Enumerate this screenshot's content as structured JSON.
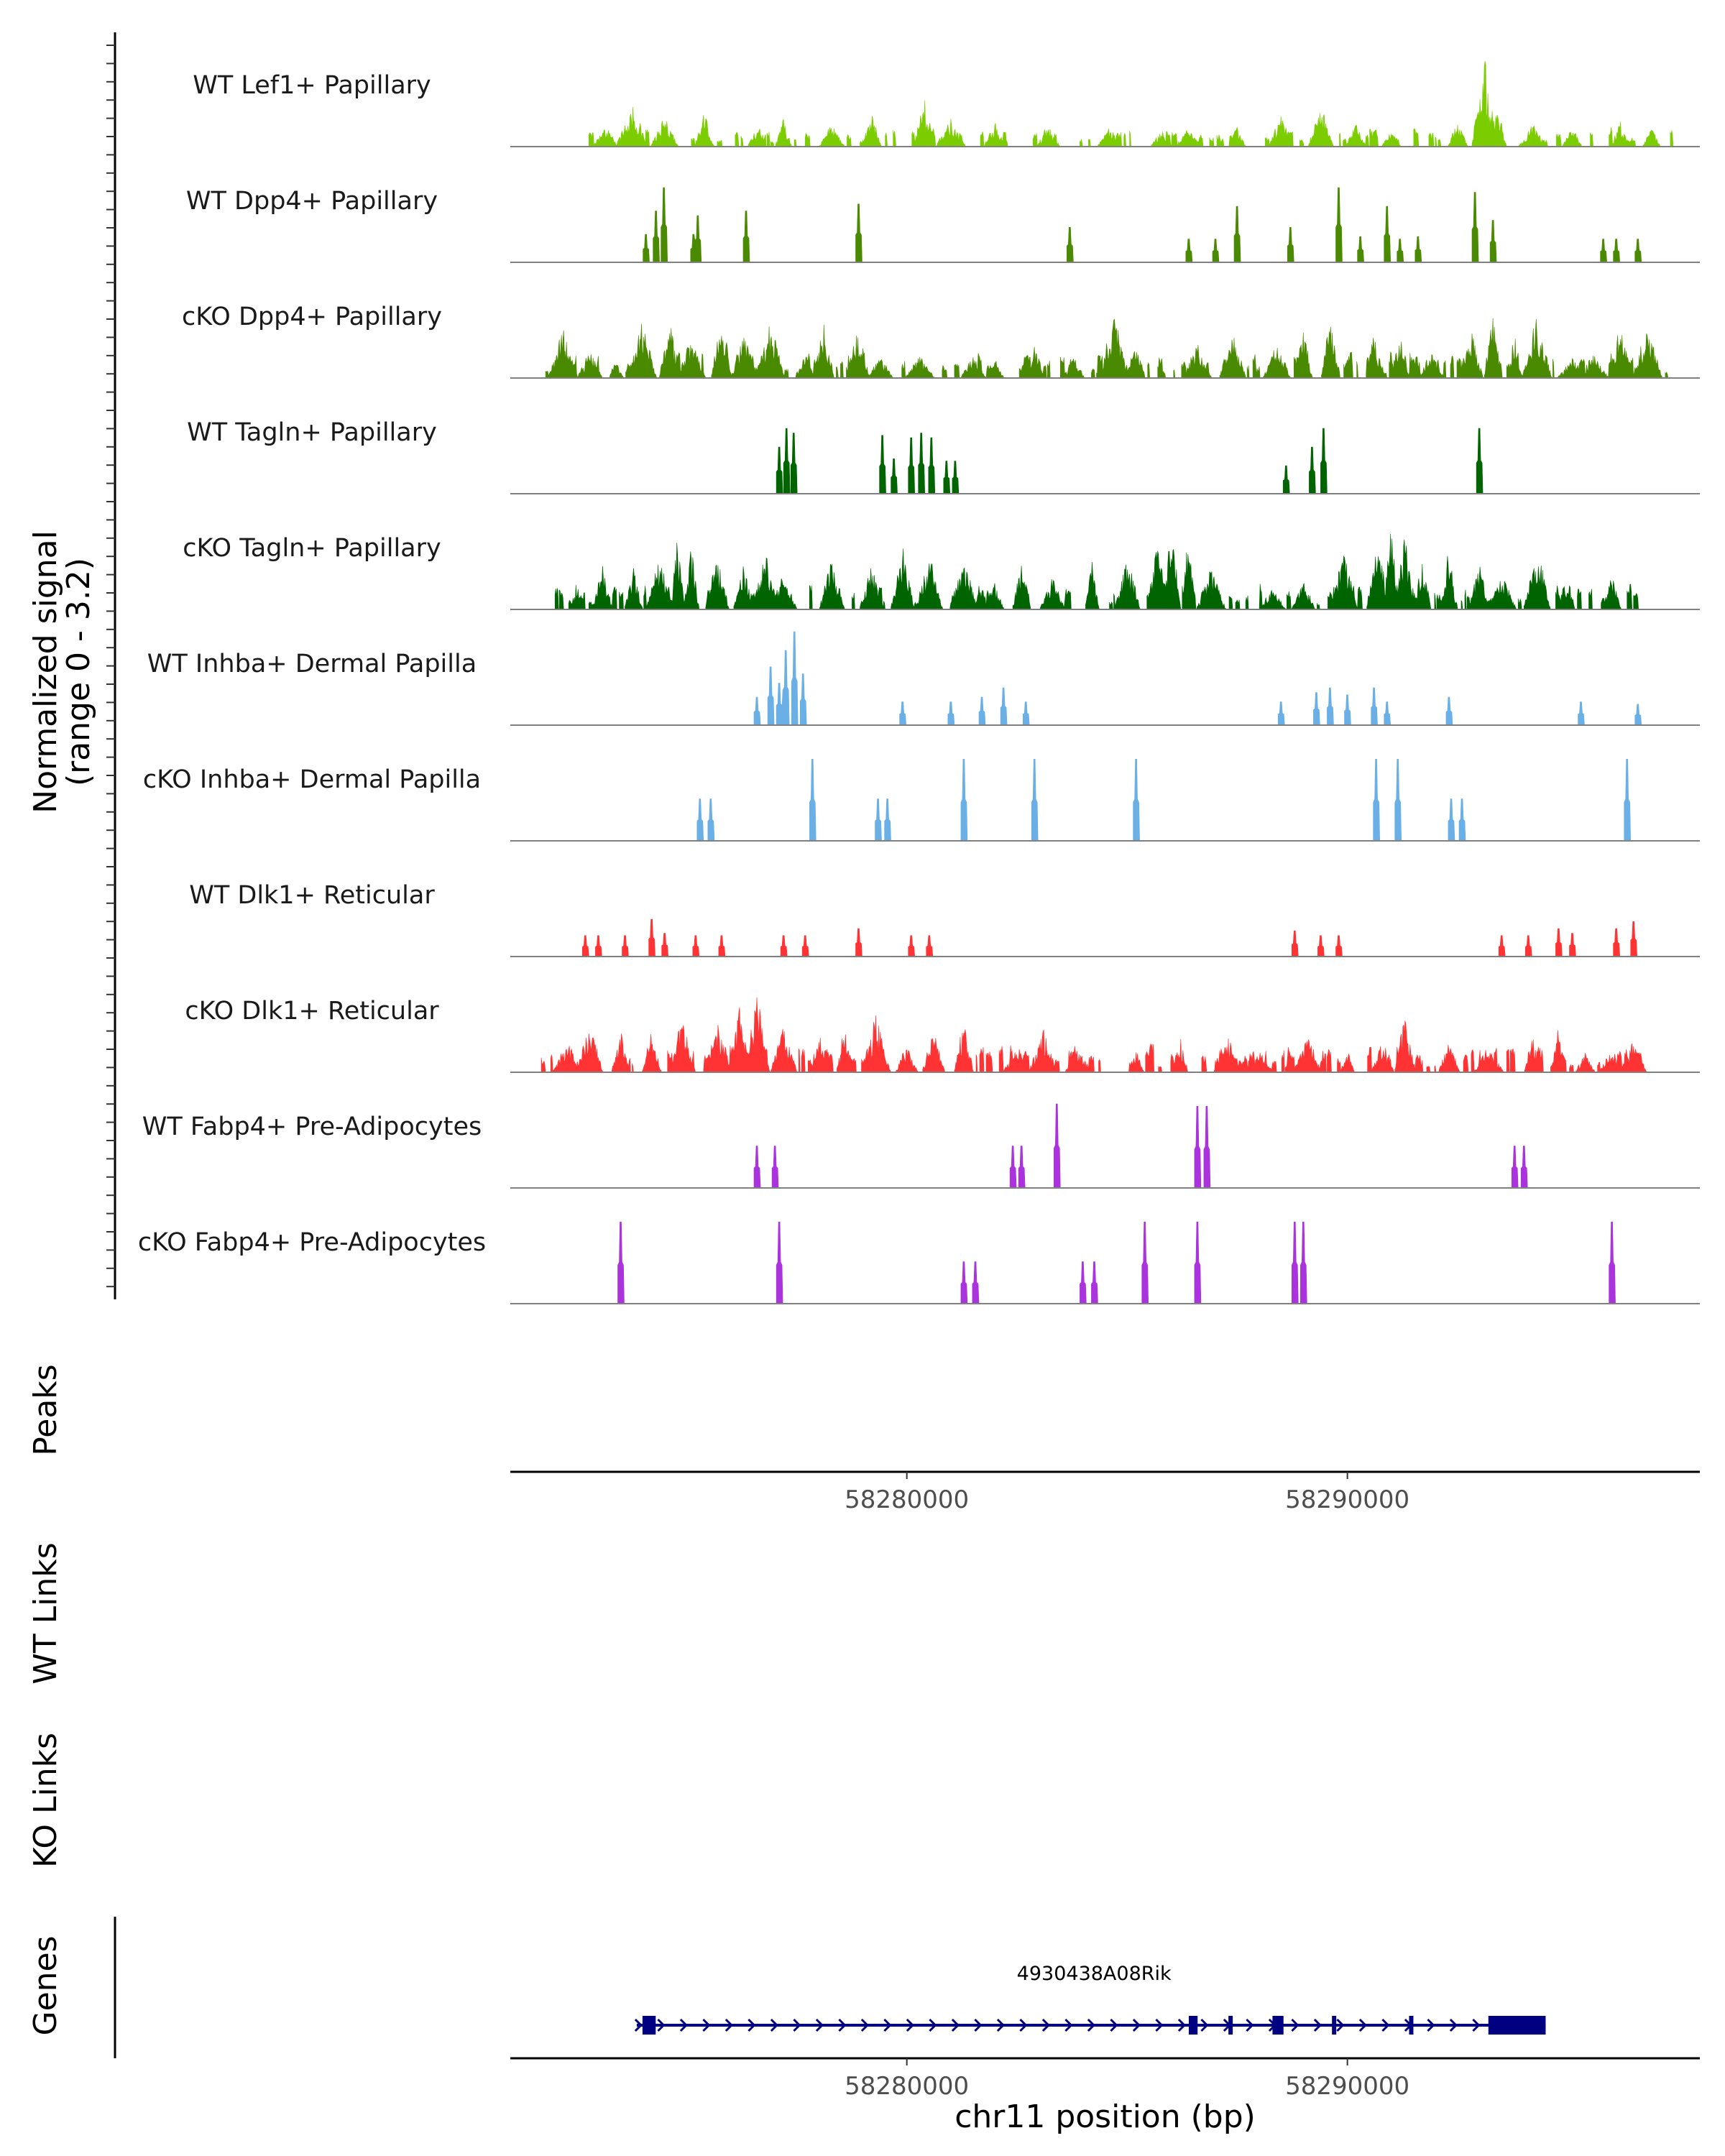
{
  "chart_data": {
    "type": "coverage",
    "chromosome": "chr11",
    "xlabel": "chr11 position (bp)",
    "xlim": [
      58271000,
      58298000
    ],
    "x_ticks": [
      58280000,
      58290000
    ],
    "x_tick_labels": [
      "58280000",
      "58290000"
    ],
    "signal_axis_label": [
      "Normalized signal",
      "(range 0 - 3.2)"
    ],
    "signal_range": [
      0,
      3.2
    ],
    "tracks": [
      {
        "name": "WT Lef1+ Papillary",
        "color": "#7CCD00",
        "density": 0.55,
        "peaks": [
          [
            58273150,
            0.8
          ],
          [
            58273600,
            1.0
          ],
          [
            58273800,
            1.9
          ],
          [
            58274500,
            1.3
          ],
          [
            58275400,
            1.5
          ],
          [
            58276600,
            0.9
          ],
          [
            58277200,
            1.3
          ],
          [
            58278300,
            1.1
          ],
          [
            58279200,
            1.5
          ],
          [
            58280400,
            2.2
          ],
          [
            58281000,
            1.3
          ],
          [
            58282000,
            1.1
          ],
          [
            58283200,
            0.9
          ],
          [
            58284600,
            0.9
          ],
          [
            58285800,
            0.8
          ],
          [
            58286400,
            0.7
          ],
          [
            58287500,
            0.9
          ],
          [
            58288500,
            1.4
          ],
          [
            58289400,
            1.9
          ],
          [
            58290200,
            1.1
          ],
          [
            58291000,
            0.7
          ],
          [
            58292500,
            1.2
          ],
          [
            58293100,
            4.0
          ],
          [
            58293400,
            2.0
          ],
          [
            58294200,
            1.0
          ],
          [
            58295100,
            0.9
          ],
          [
            58296200,
            1.1
          ],
          [
            58296900,
            0.8
          ]
        ]
      },
      {
        "name": "WT Dpp4+ Papillary",
        "color": "#4A8A00",
        "density": 0.0,
        "peaks": [
          [
            58274070,
            1.2
          ],
          [
            58274300,
            2.2
          ],
          [
            58274480,
            3.2
          ],
          [
            58275150,
            1.2
          ],
          [
            58275250,
            2.0
          ],
          [
            58276350,
            2.2
          ],
          [
            58278900,
            2.5
          ],
          [
            58283700,
            1.5
          ],
          [
            58286400,
            1.0
          ],
          [
            58287000,
            1.0
          ],
          [
            58287500,
            2.4
          ],
          [
            58288700,
            1.5
          ],
          [
            58289800,
            3.2
          ],
          [
            58290300,
            1.1
          ],
          [
            58290900,
            2.4
          ],
          [
            58291200,
            1.0
          ],
          [
            58291600,
            1.1
          ],
          [
            58292900,
            3.0
          ],
          [
            58293300,
            1.8
          ],
          [
            58295800,
            1.0
          ],
          [
            58296100,
            1.0
          ],
          [
            58296600,
            1.0
          ]
        ]
      },
      {
        "name": "cKO Dpp4+ Papillary",
        "color": "#4A8A00",
        "density": 0.85,
        "peaks": [
          [
            58272200,
            2.2
          ],
          [
            58272800,
            1.2
          ],
          [
            58273400,
            1.0
          ],
          [
            58274000,
            2.6
          ],
          [
            58274600,
            2.9
          ],
          [
            58275100,
            1.8
          ],
          [
            58275800,
            3.0
          ],
          [
            58276300,
            2.0
          ],
          [
            58276900,
            2.5
          ],
          [
            58277700,
            1.0
          ],
          [
            58278100,
            2.6
          ],
          [
            58278900,
            2.6
          ],
          [
            58279400,
            1.0
          ],
          [
            58280300,
            1.0
          ],
          [
            58281500,
            1.0
          ],
          [
            58282000,
            0.8
          ],
          [
            58282900,
            1.6
          ],
          [
            58283800,
            1.0
          ],
          [
            58284700,
            2.9
          ],
          [
            58285200,
            1.8
          ],
          [
            58286600,
            1.5
          ],
          [
            58287400,
            2.2
          ],
          [
            58288400,
            1.6
          ],
          [
            58289000,
            2.2
          ],
          [
            58289600,
            2.6
          ],
          [
            58290600,
            2.0
          ],
          [
            58291200,
            1.9
          ],
          [
            58291900,
            1.2
          ],
          [
            58292800,
            2.2
          ],
          [
            58293300,
            3.0
          ],
          [
            58293800,
            2.0
          ],
          [
            58294300,
            2.8
          ],
          [
            58295100,
            0.9
          ],
          [
            58295600,
            1.1
          ],
          [
            58296200,
            2.5
          ],
          [
            58296800,
            2.4
          ]
        ]
      },
      {
        "name": "WT Tagln+ Papillary",
        "color": "#006400",
        "density": 0.0,
        "peaks": [
          [
            58277100,
            2.0
          ],
          [
            58277270,
            2.8
          ],
          [
            58277430,
            2.6
          ],
          [
            58279450,
            2.5
          ],
          [
            58279700,
            1.5
          ],
          [
            58280100,
            2.4
          ],
          [
            58280330,
            2.6
          ],
          [
            58280550,
            2.4
          ],
          [
            58280900,
            1.4
          ],
          [
            58281100,
            1.4
          ],
          [
            58288600,
            1.2
          ],
          [
            58289200,
            2.0
          ],
          [
            58289450,
            2.8
          ],
          [
            58293000,
            2.8
          ]
        ]
      },
      {
        "name": "cKO Tagln+ Papillary",
        "color": "#006400",
        "density": 0.8,
        "peaks": [
          [
            58272500,
            1.2
          ],
          [
            58273100,
            2.0
          ],
          [
            58273800,
            1.8
          ],
          [
            58274400,
            2.5
          ],
          [
            58274800,
            3.2
          ],
          [
            58275100,
            2.8
          ],
          [
            58275700,
            2.4
          ],
          [
            58276300,
            2.0
          ],
          [
            58276800,
            2.6
          ],
          [
            58277200,
            1.6
          ],
          [
            58278300,
            2.3
          ],
          [
            58279200,
            2.0
          ],
          [
            58279900,
            2.8
          ],
          [
            58280500,
            2.5
          ],
          [
            58281300,
            2.3
          ],
          [
            58282000,
            1.2
          ],
          [
            58282600,
            2.2
          ],
          [
            58283300,
            1.4
          ],
          [
            58284200,
            2.2
          ],
          [
            58285000,
            2.4
          ],
          [
            58285700,
            3.0
          ],
          [
            58286000,
            4.0
          ],
          [
            58286400,
            3.5
          ],
          [
            58286900,
            1.8
          ],
          [
            58288300,
            1.0
          ],
          [
            58289000,
            1.3
          ],
          [
            58289900,
            2.6
          ],
          [
            58290700,
            3.2
          ],
          [
            58291000,
            4.0
          ],
          [
            58291300,
            3.2
          ],
          [
            58291700,
            2.6
          ],
          [
            58292300,
            3.0
          ],
          [
            58293000,
            2.0
          ],
          [
            58293500,
            1.6
          ],
          [
            58294300,
            3.0
          ],
          [
            58295000,
            1.5
          ],
          [
            58296000,
            1.5
          ]
        ]
      },
      {
        "name": "WT Inhba+ Dermal Papilla",
        "color": "#6AAFE6",
        "density": 0.0,
        "peaks": [
          [
            58276600,
            1.2
          ],
          [
            58276900,
            2.5
          ],
          [
            58277100,
            1.8
          ],
          [
            58277250,
            3.2
          ],
          [
            58277450,
            4.0
          ],
          [
            58277650,
            2.2
          ],
          [
            58279900,
            1.0
          ],
          [
            58281000,
            1.0
          ],
          [
            58281700,
            1.2
          ],
          [
            58282200,
            1.6
          ],
          [
            58282700,
            1.0
          ],
          [
            58288500,
            1.0
          ],
          [
            58289300,
            1.4
          ],
          [
            58289600,
            1.6
          ],
          [
            58290000,
            1.3
          ],
          [
            58290600,
            1.6
          ],
          [
            58290900,
            1.0
          ],
          [
            58292300,
            1.2
          ],
          [
            58295300,
            1.0
          ],
          [
            58296600,
            0.9
          ]
        ]
      },
      {
        "name": "cKO Inhba+ Dermal Papilla",
        "color": "#6AAFE6",
        "density": 0.0,
        "peaks": [
          [
            58275300,
            1.8
          ],
          [
            58275550,
            1.8
          ],
          [
            58277850,
            3.5
          ],
          [
            58279350,
            1.8
          ],
          [
            58279550,
            1.8
          ],
          [
            58281300,
            3.5
          ],
          [
            58282900,
            3.5
          ],
          [
            58285200,
            3.5
          ],
          [
            58290650,
            3.5
          ],
          [
            58291150,
            3.5
          ],
          [
            58292350,
            1.8
          ],
          [
            58292600,
            1.8
          ],
          [
            58296350,
            3.5
          ]
        ]
      },
      {
        "name": "WT Dlk1+ Reticular",
        "color": "#FF3333",
        "density": 0.0,
        "peaks": [
          [
            58272700,
            0.9
          ],
          [
            58273000,
            0.9
          ],
          [
            58273600,
            0.9
          ],
          [
            58274200,
            1.6
          ],
          [
            58274500,
            1.0
          ],
          [
            58275200,
            0.9
          ],
          [
            58275800,
            0.9
          ],
          [
            58277200,
            0.9
          ],
          [
            58277700,
            0.9
          ],
          [
            58278900,
            1.2
          ],
          [
            58280100,
            0.9
          ],
          [
            58280500,
            0.9
          ],
          [
            58288800,
            1.1
          ],
          [
            58289400,
            0.9
          ],
          [
            58289800,
            0.9
          ],
          [
            58293500,
            0.9
          ],
          [
            58294100,
            0.9
          ],
          [
            58294800,
            1.2
          ],
          [
            58295100,
            1.0
          ],
          [
            58296100,
            1.2
          ],
          [
            58296500,
            1.5
          ]
        ]
      },
      {
        "name": "cKO Dlk1+ Reticular",
        "color": "#FF3333",
        "density": 0.9,
        "peaks": [
          [
            58272300,
            1.4
          ],
          [
            58272800,
            2.2
          ],
          [
            58273500,
            1.8
          ],
          [
            58274200,
            1.8
          ],
          [
            58274900,
            2.4
          ],
          [
            58275700,
            2.2
          ],
          [
            58276200,
            3.0
          ],
          [
            58276600,
            3.5
          ],
          [
            58277200,
            2.0
          ],
          [
            58278000,
            1.8
          ],
          [
            58278600,
            2.2
          ],
          [
            58279300,
            2.6
          ],
          [
            58280000,
            1.2
          ],
          [
            58280600,
            2.0
          ],
          [
            58281300,
            2.4
          ],
          [
            58282500,
            1.2
          ],
          [
            58283100,
            2.0
          ],
          [
            58283900,
            1.0
          ],
          [
            58285200,
            1.0
          ],
          [
            58286200,
            1.6
          ],
          [
            58287300,
            1.5
          ],
          [
            58288000,
            1.0
          ],
          [
            58289100,
            1.6
          ],
          [
            58290000,
            1.0
          ],
          [
            58290800,
            1.4
          ],
          [
            58291300,
            2.6
          ],
          [
            58292300,
            1.6
          ],
          [
            58293200,
            1.2
          ],
          [
            58294200,
            1.8
          ],
          [
            58294800,
            2.2
          ],
          [
            58295400,
            0.9
          ],
          [
            58296000,
            1.0
          ],
          [
            58296500,
            1.4
          ]
        ]
      },
      {
        "name": "WT Fabp4+ Pre-Adipocytes",
        "color": "#AA33DD",
        "density": 0.0,
        "peaks": [
          [
            58276600,
            1.8
          ],
          [
            58277000,
            1.8
          ],
          [
            58282400,
            1.8
          ],
          [
            58282600,
            1.8
          ],
          [
            58283400,
            3.6
          ],
          [
            58286600,
            3.5
          ],
          [
            58286800,
            3.5
          ],
          [
            58293800,
            1.8
          ],
          [
            58294000,
            1.8
          ]
        ]
      },
      {
        "name": "cKO Fabp4+ Pre-Adipocytes",
        "color": "#AA33DD",
        "density": 0.0,
        "peaks": [
          [
            58273500,
            3.5
          ],
          [
            58277100,
            3.5
          ],
          [
            58281300,
            1.8
          ],
          [
            58281550,
            1.8
          ],
          [
            58284000,
            1.8
          ],
          [
            58284250,
            1.8
          ],
          [
            58285400,
            3.5
          ],
          [
            58286600,
            3.5
          ],
          [
            58288800,
            3.5
          ],
          [
            58289000,
            3.5
          ],
          [
            58296000,
            3.5
          ]
        ]
      }
    ],
    "peaks_track_label": "Peaks",
    "links_tracks": [
      "WT Links",
      "KO Links"
    ],
    "genes_track_label": "Genes",
    "gene": {
      "name": "4930438A08Rik",
      "color": "#000080",
      "start": 58274000,
      "end": 58294500,
      "strand": "+",
      "exons": [
        [
          58274000,
          58274300
        ],
        [
          58286400,
          58286600
        ],
        [
          58287300,
          58287370
        ],
        [
          58288300,
          58288550
        ],
        [
          58289650,
          58289710
        ],
        [
          58291400,
          58291470
        ],
        [
          58293200,
          58294500
        ]
      ]
    }
  }
}
